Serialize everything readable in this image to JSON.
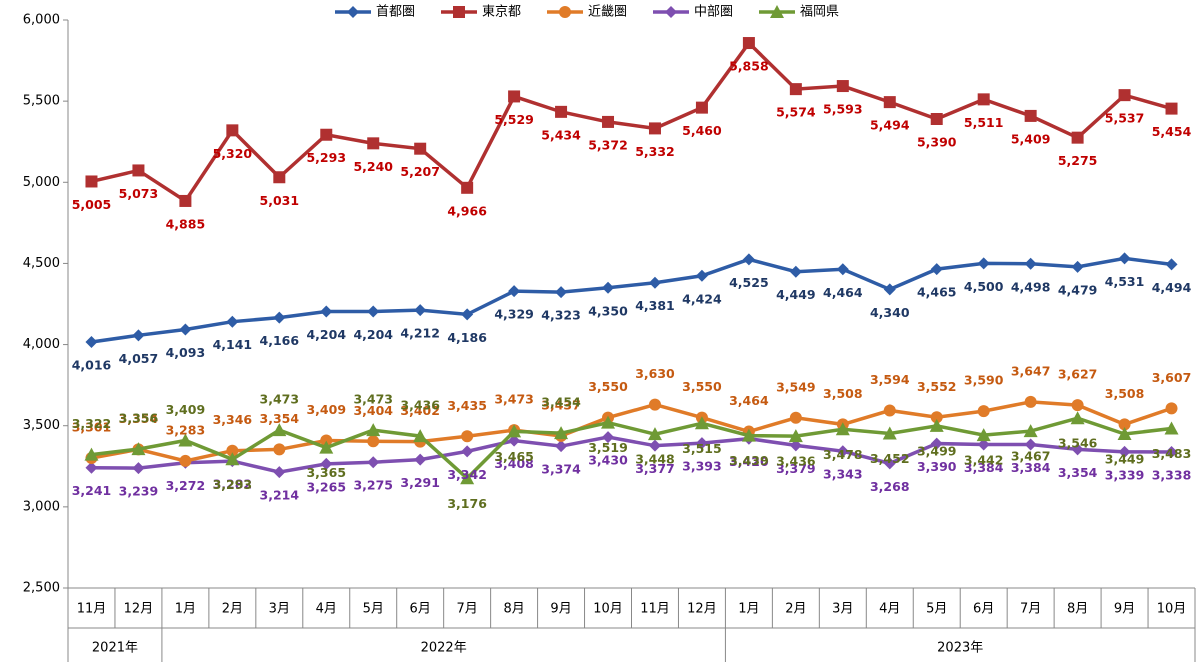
{
  "chart_data": {
    "type": "line",
    "categories": [
      "11月",
      "12月",
      "1月",
      "2月",
      "3月",
      "4月",
      "5月",
      "6月",
      "7月",
      "8月",
      "9月",
      "10月",
      "11月",
      "12月",
      "1月",
      "2月",
      "3月",
      "4月",
      "5月",
      "6月",
      "7月",
      "8月",
      "9月",
      "10月"
    ],
    "year_groups": [
      {
        "label": "2021年",
        "count": 2
      },
      {
        "label": "2022年",
        "count": 12
      },
      {
        "label": "2023年",
        "count": 10
      }
    ],
    "series": [
      {
        "name": "首都圏",
        "color": "#2e5ca6",
        "label_color": "#1f3864",
        "marker": "diamond",
        "values": [
          4016,
          4057,
          4093,
          4141,
          4166,
          4204,
          4204,
          4212,
          4186,
          4329,
          4323,
          4350,
          4381,
          4424,
          4525,
          4449,
          4464,
          4340,
          4465,
          4500,
          4498,
          4479,
          4531,
          4494
        ],
        "value_labels": [
          "4,016",
          "4,057",
          "4,093",
          "4,141",
          "4,166",
          "4,204",
          "4,204",
          "4,212",
          "4,186",
          "4,329",
          "4,323",
          "4,350",
          "4,381",
          "4,424",
          "4,525",
          "4,449",
          "4,464",
          "4,340",
          "4,465",
          "4,500",
          "4,498",
          "4,479",
          "4,531",
          "4,494"
        ]
      },
      {
        "name": "東京都",
        "color": "#b03030",
        "label_color": "#c00000",
        "marker": "square",
        "values": [
          5005,
          5073,
          4885,
          5320,
          5031,
          5293,
          5240,
          5207,
          4966,
          5529,
          5434,
          5372,
          5332,
          5460,
          5858,
          5574,
          5593,
          5494,
          5390,
          5511,
          5409,
          5275,
          5537,
          5454
        ],
        "value_labels": [
          "5,005",
          "5,073",
          "4,885",
          "5,320",
          "5,031",
          "5,293",
          "5,240",
          "5,207",
          "4,966",
          "5,529",
          "5,434",
          "5,372",
          "5,332",
          "5,460",
          "5,858",
          "5,574",
          "5,593",
          "5,494",
          "5,390",
          "5,511",
          "5,409",
          "5,275",
          "5,537",
          "5,454"
        ]
      },
      {
        "name": "近畿圏",
        "color": "#e07b28",
        "label_color": "#c55a11",
        "marker": "circle",
        "values": [
          3301,
          3354,
          3283,
          3346,
          3354,
          3409,
          3404,
          3402,
          3435,
          3473,
          3437,
          3550,
          3630,
          3550,
          3464,
          3549,
          3508,
          3594,
          3552,
          3590,
          3647,
          3627,
          3508,
          3607
        ],
        "value_labels": [
          "3,301",
          "3,354",
          "3,283",
          "3,346",
          "3,354",
          "3,409",
          "3,404",
          "3,402",
          "3,435",
          "3,473",
          "3,437",
          "3,550",
          "3,630",
          "3,550",
          "3,464",
          "3,549",
          "3,508",
          "3,594",
          "3,552",
          "3,590",
          "3,647",
          "3,627",
          "3,508",
          "3,607"
        ]
      },
      {
        "name": "中部圏",
        "color": "#7e4fb0",
        "label_color": "#7030a0",
        "marker": "diamond",
        "values": [
          3241,
          3239,
          3272,
          3282,
          3214,
          3265,
          3275,
          3291,
          3342,
          3408,
          3374,
          3430,
          3377,
          3393,
          3420,
          3379,
          3343,
          3268,
          3390,
          3384,
          3384,
          3354,
          3339,
          3338
        ],
        "value_labels": [
          "3,241",
          "3,239",
          "3,272",
          "3,282",
          "3,214",
          "3,265",
          "3,275",
          "3,291",
          "3,342",
          "3,408",
          "3,374",
          "3,430",
          "3,377",
          "3,393",
          "3,420",
          "3,379",
          "3,343",
          "3,268",
          "3,390",
          "3,384",
          "3,384",
          "3,354",
          "3,339",
          "3,338"
        ]
      },
      {
        "name": "福岡県",
        "color": "#6f9a35",
        "label_color": "#5f6e1f",
        "marker": "triangle",
        "values": [
          3322,
          3356,
          3409,
          3293,
          3473,
          3365,
          3473,
          3436,
          3176,
          3465,
          3454,
          3519,
          3448,
          3515,
          3439,
          3436,
          3478,
          3452,
          3499,
          3442,
          3467,
          3546,
          3449,
          3483
        ],
        "value_labels": [
          "3,322",
          "3,356",
          "3,409",
          "3,293",
          "3,473",
          "3,365",
          "3,473",
          "3,436",
          "3,176",
          "3,465",
          "3,454",
          "3,519",
          "3,448",
          "3,515",
          "3,439",
          "3,436",
          "3,478",
          "3,452",
          "3,499",
          "3,442",
          "3,467",
          "3,546",
          "3,449",
          "3,483"
        ]
      }
    ],
    "ylim": [
      2500,
      6000
    ],
    "yticks": [
      {
        "value": 2500,
        "label": "2,500"
      },
      {
        "value": 3000,
        "label": "3,000"
      },
      {
        "value": 3500,
        "label": "3,500"
      },
      {
        "value": 4000,
        "label": "4,000"
      },
      {
        "value": 4500,
        "label": "4,500"
      },
      {
        "value": 5000,
        "label": "5,000"
      },
      {
        "value": 5500,
        "label": "5,500"
      },
      {
        "value": 6000,
        "label": "6,000"
      }
    ],
    "legend": "top"
  }
}
